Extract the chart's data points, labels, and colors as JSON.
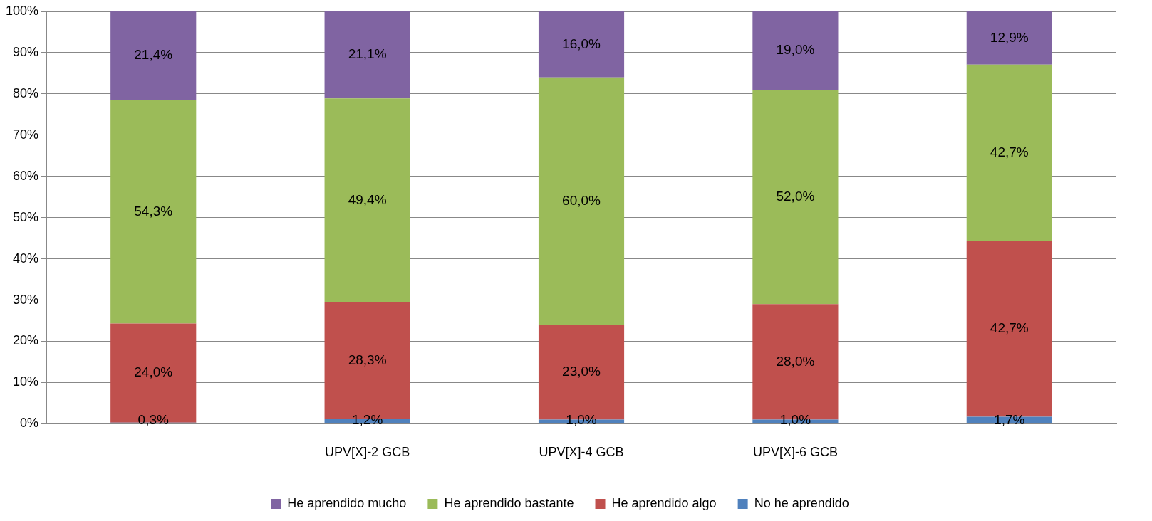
{
  "chart_data": {
    "type": "bar",
    "stacked": true,
    "categories": [
      null,
      "UPV[X]-2 GCB",
      "UPV[X]-4 GCB",
      "UPV[X]-6 GCB",
      null
    ],
    "series": [
      {
        "name": "No he aprendido",
        "color": "#4f81bd",
        "values": [
          0.3,
          1.2,
          1.0,
          1.0,
          1.7
        ],
        "value_labels": [
          "0,3%",
          "1,2%",
          "1,0%",
          "1,0%",
          "1,7%"
        ]
      },
      {
        "name": "He aprendido algo",
        "color": "#c0504d",
        "values": [
          24.0,
          28.3,
          23.0,
          28.0,
          42.7
        ],
        "value_labels": [
          "24,0%",
          "28,3%",
          "23,0%",
          "28,0%",
          "42,7%"
        ]
      },
      {
        "name": "He aprendido bastante",
        "color": "#9bbb59",
        "values": [
          54.3,
          49.4,
          60.0,
          52.0,
          42.7
        ],
        "value_labels": [
          "54,3%",
          "49,4%",
          "60,0%",
          "52,0%",
          "42,7%"
        ]
      },
      {
        "name": "He aprendido mucho",
        "color": "#8064a2",
        "values": [
          21.4,
          21.1,
          16.0,
          19.0,
          12.9
        ],
        "value_labels": [
          "21,4%",
          "21,1%",
          "16,0%",
          "19,0%",
          "12,9%"
        ]
      }
    ],
    "ylim": [
      0,
      100
    ],
    "yticks": [
      {
        "value": 0,
        "label": "0%"
      },
      {
        "value": 10,
        "label": "10%"
      },
      {
        "value": 20,
        "label": "20%"
      },
      {
        "value": 30,
        "label": "30%"
      },
      {
        "value": 40,
        "label": "40%"
      },
      {
        "value": 50,
        "label": "50%"
      },
      {
        "value": 60,
        "label": "60%"
      },
      {
        "value": 70,
        "label": "70%"
      },
      {
        "value": 80,
        "label": "80%"
      },
      {
        "value": 90,
        "label": "90%"
      },
      {
        "value": 100,
        "label": "100%"
      }
    ],
    "grid": "y",
    "legend": "bottom"
  }
}
